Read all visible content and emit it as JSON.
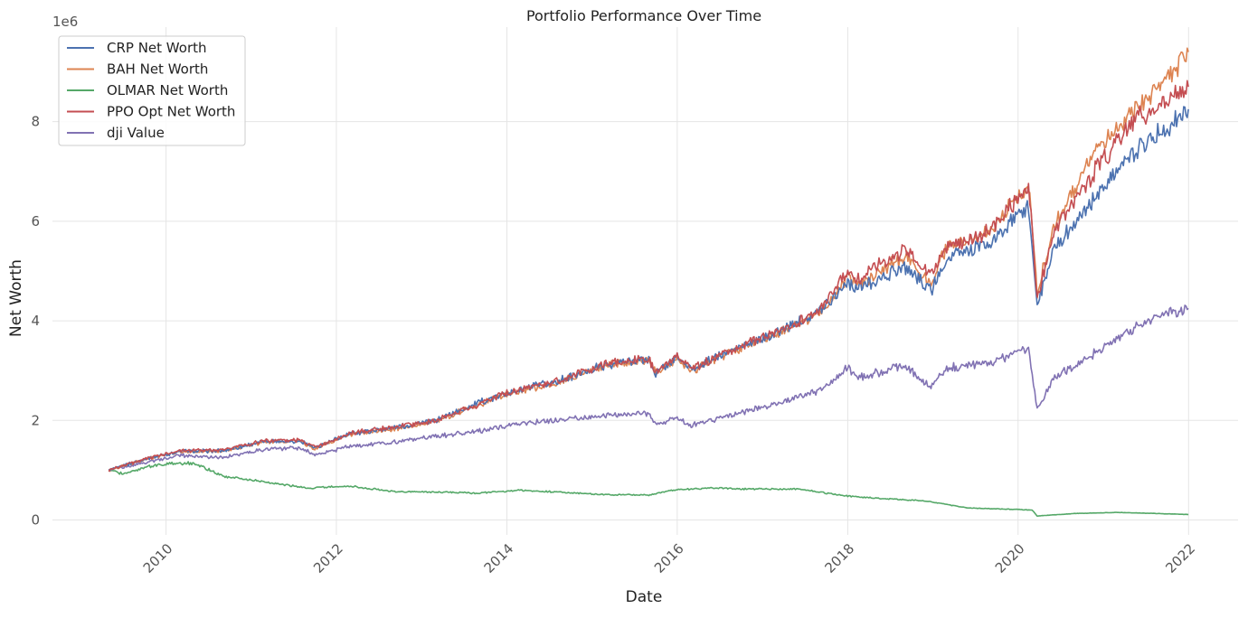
{
  "chart_data": {
    "type": "line",
    "title": "Portfolio Performance Over Time",
    "xlabel": "Date",
    "ylabel": "Net Worth",
    "y_offset_label": "1e6",
    "x_ticks": [
      "2010",
      "2012",
      "2014",
      "2016",
      "2018",
      "2020",
      "2022"
    ],
    "y_ticks": [
      "0",
      "2",
      "4",
      "6",
      "8"
    ],
    "xlim": [
      "2008-09-01",
      "2022-08-01"
    ],
    "ylim": [
      -300000,
      9900000
    ],
    "grid": true,
    "legend_position": "top-left",
    "series": [
      {
        "name": "CRP Net Worth",
        "color": "#4c72b0",
        "x": [
          "2009-05-01",
          "2009-10-01",
          "2010-03-01",
          "2010-09-01",
          "2011-03-01",
          "2011-08-01",
          "2011-10-01",
          "2012-03-01",
          "2012-09-01",
          "2013-03-01",
          "2013-09-01",
          "2014-01-01",
          "2014-09-01",
          "2015-03-01",
          "2015-09-01",
          "2015-10-01",
          "2016-01-01",
          "2016-03-01",
          "2016-09-01",
          "2017-03-01",
          "2017-09-01",
          "2018-01-01",
          "2018-02-15",
          "2018-09-01",
          "2018-12-24",
          "2019-03-01",
          "2019-09-01",
          "2020-02-15",
          "2020-03-23",
          "2020-06-01",
          "2020-09-01",
          "2021-01-01",
          "2021-06-01",
          "2021-09-01",
          "2021-12-31"
        ],
        "values": [
          1000000,
          1220000,
          1380000,
          1390000,
          1580000,
          1590000,
          1450000,
          1730000,
          1850000,
          2000000,
          2350000,
          2540000,
          2820000,
          3120000,
          3220000,
          2950000,
          3270000,
          3020000,
          3430000,
          3750000,
          4200000,
          4780000,
          4650000,
          5100000,
          4600000,
          5250000,
          5550000,
          6300000,
          4300000,
          5450000,
          5950000,
          6700000,
          7500000,
          7800000,
          8250000
        ]
      },
      {
        "name": "BAH Net Worth",
        "color": "#dd8452",
        "x": [
          "2009-05-01",
          "2009-10-01",
          "2010-03-01",
          "2010-09-01",
          "2011-03-01",
          "2011-08-01",
          "2011-10-01",
          "2012-03-01",
          "2012-09-01",
          "2013-03-01",
          "2013-09-01",
          "2014-01-01",
          "2014-09-01",
          "2015-03-01",
          "2015-09-01",
          "2015-10-01",
          "2016-01-01",
          "2016-03-01",
          "2016-09-01",
          "2017-03-01",
          "2017-09-01",
          "2018-01-01",
          "2018-02-15",
          "2018-09-01",
          "2018-12-24",
          "2019-03-01",
          "2019-09-01",
          "2020-02-15",
          "2020-03-23",
          "2020-06-01",
          "2020-09-01",
          "2021-01-01",
          "2021-06-01",
          "2021-09-01",
          "2021-12-31"
        ],
        "values": [
          1000000,
          1210000,
          1370000,
          1380000,
          1570000,
          1580000,
          1440000,
          1720000,
          1830000,
          1980000,
          2320000,
          2520000,
          2800000,
          3100000,
          3200000,
          2940000,
          3250000,
          3000000,
          3400000,
          3720000,
          4150000,
          4850000,
          4700000,
          5300000,
          4750000,
          5500000,
          5800000,
          6750000,
          4550000,
          5900000,
          6700000,
          7600000,
          8350000,
          8700000,
          9400000
        ]
      },
      {
        "name": "OLMAR Net Worth",
        "color": "#55a868",
        "x": [
          "2009-05-01",
          "2009-07-01",
          "2009-10-01",
          "2010-01-01",
          "2010-05-01",
          "2010-09-01",
          "2011-03-01",
          "2011-09-01",
          "2012-03-01",
          "2012-09-01",
          "2013-03-01",
          "2013-09-01",
          "2014-03-01",
          "2014-09-01",
          "2015-03-01",
          "2015-09-01",
          "2016-01-01",
          "2016-06-01",
          "2017-01-01",
          "2017-06-01",
          "2018-01-01",
          "2018-06-01",
          "2018-12-01",
          "2019-06-01",
          "2020-01-01",
          "2020-03-01",
          "2020-03-23",
          "2020-09-01",
          "2021-03-01",
          "2021-06-01",
          "2021-12-31"
        ],
        "values": [
          1000000,
          930000,
          1050000,
          1130000,
          1140000,
          880000,
          760000,
          640000,
          680000,
          570000,
          560000,
          540000,
          600000,
          550000,
          510000,
          500000,
          610000,
          640000,
          620000,
          620000,
          480000,
          430000,
          380000,
          240000,
          210000,
          200000,
          80000,
          130000,
          150000,
          140000,
          110000
        ]
      },
      {
        "name": "PPO Opt Net Worth",
        "color": "#c44e52",
        "x": [
          "2009-05-01",
          "2009-10-01",
          "2010-03-01",
          "2010-09-01",
          "2011-03-01",
          "2011-08-01",
          "2011-10-01",
          "2012-03-01",
          "2012-09-01",
          "2013-03-01",
          "2013-09-01",
          "2014-01-01",
          "2014-09-01",
          "2015-03-01",
          "2015-09-01",
          "2015-10-01",
          "2016-01-01",
          "2016-03-01",
          "2016-09-01",
          "2017-03-01",
          "2017-09-01",
          "2018-01-01",
          "2018-02-15",
          "2018-09-01",
          "2018-12-24",
          "2019-03-01",
          "2019-09-01",
          "2020-02-15",
          "2020-03-23",
          "2020-06-01",
          "2020-09-01",
          "2021-01-01",
          "2021-06-01",
          "2021-09-01",
          "2021-12-31"
        ],
        "values": [
          1000000,
          1230000,
          1390000,
          1400000,
          1590000,
          1600000,
          1460000,
          1740000,
          1860000,
          1990000,
          2330000,
          2550000,
          2830000,
          3130000,
          3230000,
          2960000,
          3280000,
          3030000,
          3440000,
          3780000,
          4230000,
          5000000,
          4850000,
          5450000,
          4900000,
          5450000,
          5800000,
          6700000,
          4450000,
          5800000,
          6400000,
          7250000,
          8100000,
          8350000,
          8700000
        ]
      },
      {
        "name": "dji Value",
        "color": "#8172b3",
        "x": [
          "2009-05-01",
          "2009-10-01",
          "2010-03-01",
          "2010-09-01",
          "2011-03-01",
          "2011-08-01",
          "2011-10-01",
          "2012-03-01",
          "2012-09-01",
          "2013-03-01",
          "2013-09-01",
          "2014-01-01",
          "2014-09-01",
          "2015-03-01",
          "2015-09-01",
          "2015-10-01",
          "2016-01-01",
          "2016-03-01",
          "2016-09-01",
          "2017-03-01",
          "2017-09-01",
          "2018-01-01",
          "2018-02-15",
          "2018-09-01",
          "2018-12-24",
          "2019-03-01",
          "2019-09-01",
          "2020-02-15",
          "2020-03-23",
          "2020-06-01",
          "2020-09-01",
          "2021-01-01",
          "2021-06-01",
          "2021-09-01",
          "2021-12-31"
        ],
        "values": [
          1000000,
          1150000,
          1300000,
          1250000,
          1420000,
          1450000,
          1300000,
          1480000,
          1560000,
          1680000,
          1780000,
          1900000,
          2020000,
          2100000,
          2150000,
          1900000,
          2050000,
          1900000,
          2120000,
          2350000,
          2600000,
          3050000,
          2850000,
          3100000,
          2650000,
          3050000,
          3150000,
          3450000,
          2200000,
          2850000,
          3100000,
          3450000,
          3900000,
          4100000,
          4250000
        ]
      }
    ]
  }
}
